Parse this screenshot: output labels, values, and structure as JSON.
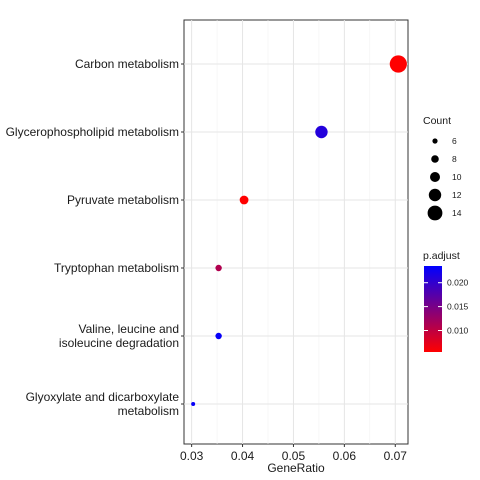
{
  "chart_data": {
    "type": "scatter",
    "title": "",
    "xlabel": "GeneRatio",
    "ylabel": "",
    "xlim": [
      0.0285,
      0.0725
    ],
    "x_ticks": [
      "0.03",
      "0.04",
      "0.05",
      "0.06",
      "0.07"
    ],
    "x_tick_values": [
      0.03,
      0.04,
      0.05,
      0.06,
      0.07
    ],
    "grid": true,
    "categories": [
      "Carbon metabolism",
      "Glycerophospholipid metabolism",
      "Pyruvate metabolism",
      "Tryptophan metabolism",
      "Valine, leucine and isoleucine degradation",
      "Glyoxylate and dicarboxylate metabolism"
    ],
    "category_display": [
      [
        "Carbon metabolism"
      ],
      [
        "Glycerophospholipid metabolism"
      ],
      [
        "Pyruvate metabolism"
      ],
      [
        "Tryptophan metabolism"
      ],
      [
        "Valine, leucine and",
        "isoleucine degradation"
      ],
      [
        "Glyoxylate and dicarboxylate",
        "metabolism"
      ]
    ],
    "points": [
      {
        "category": "Carbon metabolism",
        "gene_ratio": 0.0706,
        "count": 16,
        "p_adjust": 0.005
      },
      {
        "category": "Glycerophospholipid metabolism",
        "gene_ratio": 0.0555,
        "count": 12,
        "p_adjust": 0.021
      },
      {
        "category": "Pyruvate metabolism",
        "gene_ratio": 0.0403,
        "count": 9,
        "p_adjust": 0.005
      },
      {
        "category": "Tryptophan metabolism",
        "gene_ratio": 0.0353,
        "count": 7,
        "p_adjust": 0.011
      },
      {
        "category": "Valine, leucine and isoleucine degradation",
        "gene_ratio": 0.0353,
        "count": 7,
        "p_adjust": 0.023
      },
      {
        "category": "Glyoxylate and dicarboxylate metabolism",
        "gene_ratio": 0.0303,
        "count": 5,
        "p_adjust": 0.023
      }
    ],
    "legend": {
      "placement": "right",
      "size_title": "Count",
      "size_items": [
        6,
        8,
        10,
        12,
        14
      ],
      "color_title": "p.adjust",
      "color_labels": [
        "0.020",
        "0.015",
        "0.010"
      ],
      "color_values": [
        0.02,
        0.015,
        0.01
      ],
      "color_range": [
        0.0055,
        0.0235
      ],
      "color_low": "#ff0000",
      "color_high": "#0000ff"
    }
  }
}
